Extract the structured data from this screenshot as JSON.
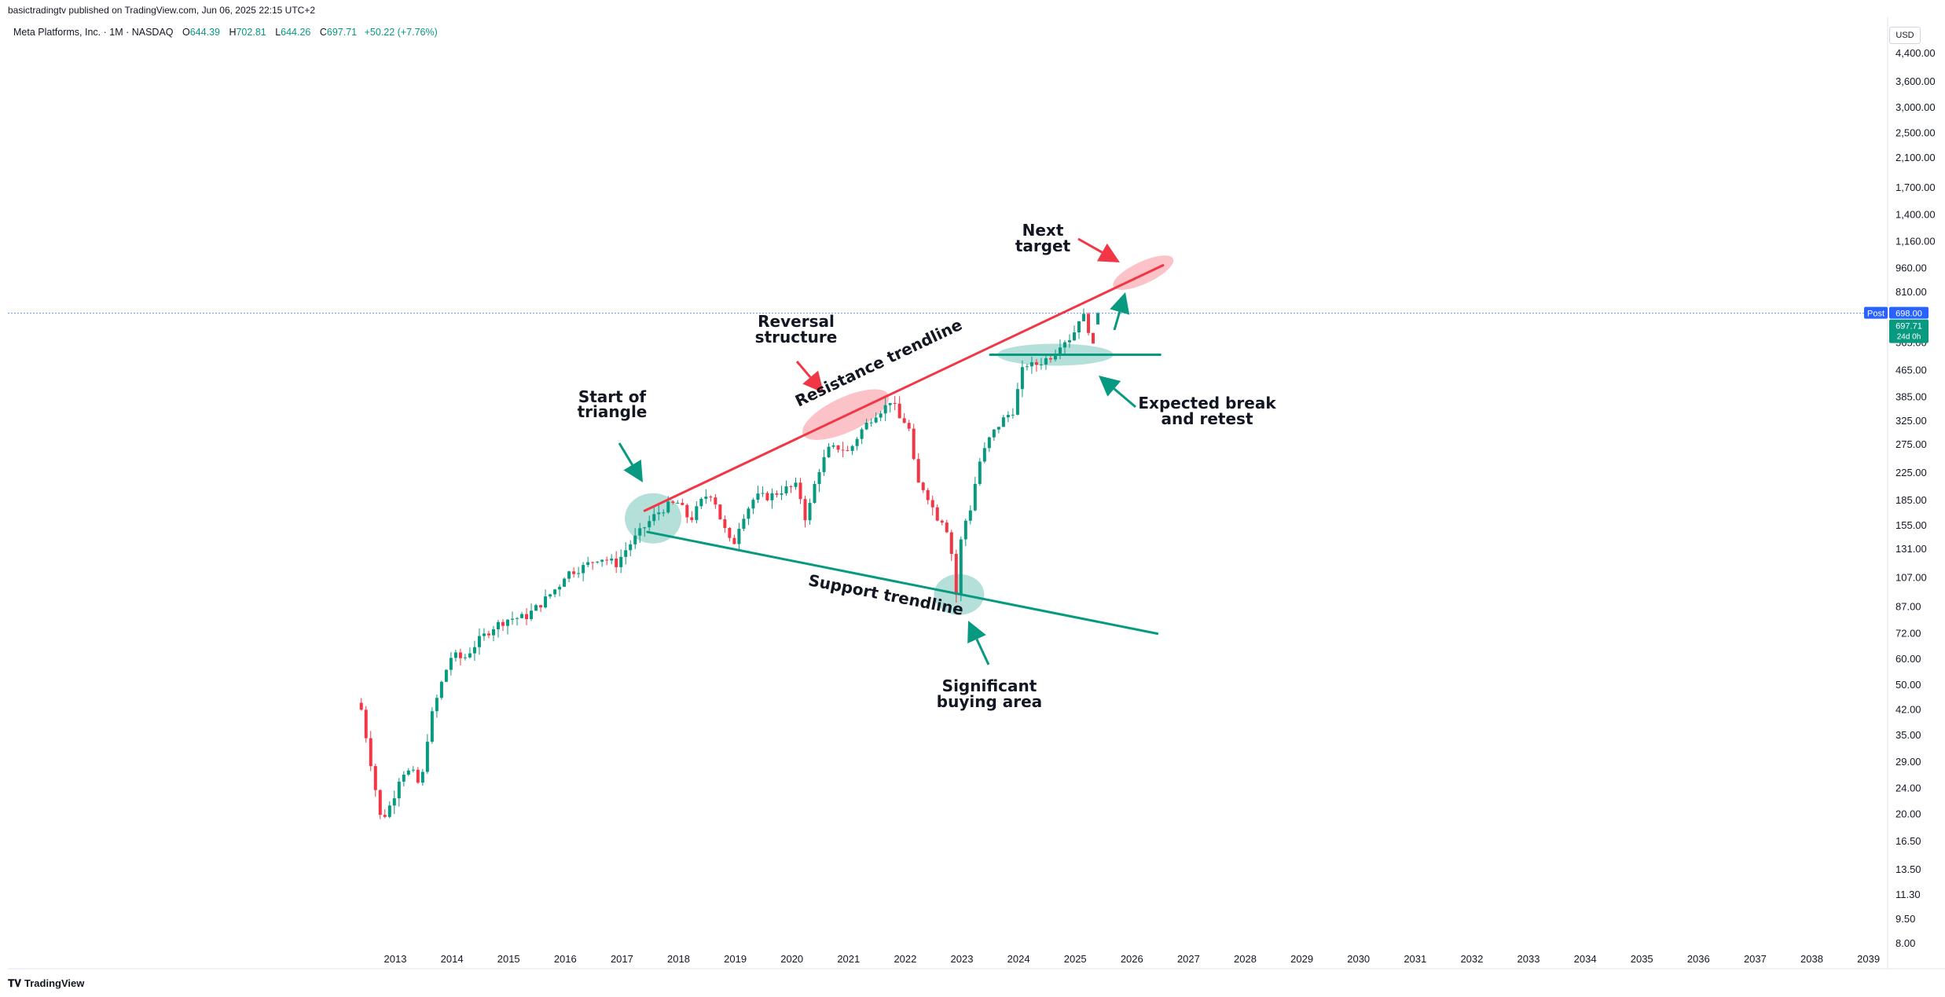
{
  "header": {
    "publish_line": "basictradingtv published on TradingView.com, Jun 06, 2025 22:15 UTC+2",
    "symbol": "Meta Platforms, Inc. · 1M · NASDAQ",
    "o_label": "O",
    "o_value": "644.39",
    "h_label": "H",
    "h_value": "702.81",
    "l_label": "L",
    "l_value": "644.26",
    "c_label": "C",
    "c_value": "697.71",
    "change": "+50.22 (+7.76%)",
    "currency": "USD"
  },
  "price_tags": {
    "post_label": "Post",
    "post_value": "698.00",
    "last_value": "697.71",
    "countdown": "24d 0h"
  },
  "footer": {
    "logo_text": "TradingView"
  },
  "colors": {
    "up": "#089981",
    "down": "#f23645",
    "resistance": "#f23645",
    "support": "#089981",
    "post_tag": "#2962ff"
  },
  "chart_data": {
    "type": "candlestick",
    "symbol": "META",
    "interval": "1M",
    "y_scale": "log",
    "ylim": [
      8,
      4800
    ],
    "y_ticks": [
      "4,400.00",
      "3,600.00",
      "3,000.00",
      "2,500.00",
      "2,100.00",
      "1,700.00",
      "1,400.00",
      "1,160.00",
      "960.00",
      "810.00",
      "565.00",
      "465.00",
      "385.00",
      "325.00",
      "275.00",
      "225.00",
      "185.00",
      "155.00",
      "131.00",
      "107.00",
      "87.00",
      "72.00",
      "60.00",
      "50.00",
      "42.00",
      "35.00",
      "29.00",
      "24.00",
      "20.00",
      "16.50",
      "13.50",
      "11.30",
      "9.50",
      "8.00"
    ],
    "x_ticks": [
      "2013",
      "2014",
      "2015",
      "2016",
      "2017",
      "2018",
      "2019",
      "2020",
      "2021",
      "2022",
      "2023",
      "2024",
      "2025",
      "2026",
      "2027",
      "2028",
      "2029",
      "2030",
      "2031",
      "2032",
      "2033",
      "2034",
      "2035",
      "2036",
      "2037",
      "2038",
      "2039"
    ],
    "anchors": [
      [
        2012.4,
        42
      ],
      [
        2012.55,
        30
      ],
      [
        2012.75,
        19
      ],
      [
        2012.95,
        22
      ],
      [
        2013.1,
        27
      ],
      [
        2013.3,
        27
      ],
      [
        2013.45,
        24
      ],
      [
        2013.6,
        38
      ],
      [
        2013.85,
        53
      ],
      [
        2014.0,
        62
      ],
      [
        2014.2,
        60
      ],
      [
        2014.45,
        68
      ],
      [
        2014.75,
        76
      ],
      [
        2015.0,
        80
      ],
      [
        2015.3,
        81
      ],
      [
        2015.6,
        90
      ],
      [
        2015.9,
        102
      ],
      [
        2016.0,
        110
      ],
      [
        2016.3,
        115
      ],
      [
        2016.6,
        124
      ],
      [
        2016.9,
        118
      ],
      [
        2017.1,
        133
      ],
      [
        2017.35,
        150
      ],
      [
        2017.6,
        168
      ],
      [
        2017.8,
        178
      ],
      [
        2018.0,
        182
      ],
      [
        2018.2,
        160
      ],
      [
        2018.45,
        190
      ],
      [
        2018.6,
        195
      ],
      [
        2018.75,
        160
      ],
      [
        2018.95,
        132
      ],
      [
        2019.1,
        162
      ],
      [
        2019.35,
        190
      ],
      [
        2019.6,
        190
      ],
      [
        2019.85,
        200
      ],
      [
        2020.1,
        205
      ],
      [
        2020.25,
        160
      ],
      [
        2020.45,
        225
      ],
      [
        2020.65,
        265
      ],
      [
        2020.85,
        270
      ],
      [
        2021.0,
        260
      ],
      [
        2021.2,
        300
      ],
      [
        2021.45,
        340
      ],
      [
        2021.65,
        360
      ],
      [
        2021.75,
        380
      ],
      [
        2021.9,
        330
      ],
      [
        2022.05,
        320
      ],
      [
        2022.2,
        210
      ],
      [
        2022.35,
        200
      ],
      [
        2022.55,
        165
      ],
      [
        2022.7,
        160
      ],
      [
        2022.8,
        135
      ],
      [
        2022.9,
        95
      ],
      [
        2023.0,
        150
      ],
      [
        2023.15,
        175
      ],
      [
        2023.3,
        240
      ],
      [
        2023.5,
        290
      ],
      [
        2023.7,
        325
      ],
      [
        2023.9,
        350
      ],
      [
        2024.1,
        490
      ],
      [
        2024.25,
        480
      ],
      [
        2024.45,
        500
      ],
      [
        2024.6,
        520
      ],
      [
        2024.75,
        570
      ],
      [
        2024.95,
        590
      ],
      [
        2025.1,
        700
      ],
      [
        2025.2,
        660
      ],
      [
        2025.3,
        560
      ],
      [
        2025.35,
        520
      ],
      [
        2025.42,
        645
      ],
      [
        2025.45,
        698
      ]
    ],
    "last_candle": {
      "open": 644.39,
      "high": 702.81,
      "low": 644.26,
      "close": 697.71
    },
    "annotations": [
      {
        "text": "Start of triangle"
      },
      {
        "text": "Reversal structure"
      },
      {
        "text": "Resistance trendline"
      },
      {
        "text": "Support trendline"
      },
      {
        "text": "Significant buying area"
      },
      {
        "text": "Next target"
      },
      {
        "text": "Expected break and retest"
      }
    ],
    "trendlines": [
      {
        "name": "Resistance trendline",
        "color": "#f23645",
        "from": [
          2017.4,
          172
        ],
        "to": [
          2026.55,
          980
        ]
      },
      {
        "name": "Support trendline",
        "color": "#089981",
        "from": [
          2017.45,
          148
        ],
        "to": [
          2026.45,
          72
        ]
      },
      {
        "name": "Expected break and retest level",
        "color": "#089981",
        "from": [
          2023.5,
          520
        ],
        "to": [
          2026.5,
          520
        ]
      }
    ]
  }
}
